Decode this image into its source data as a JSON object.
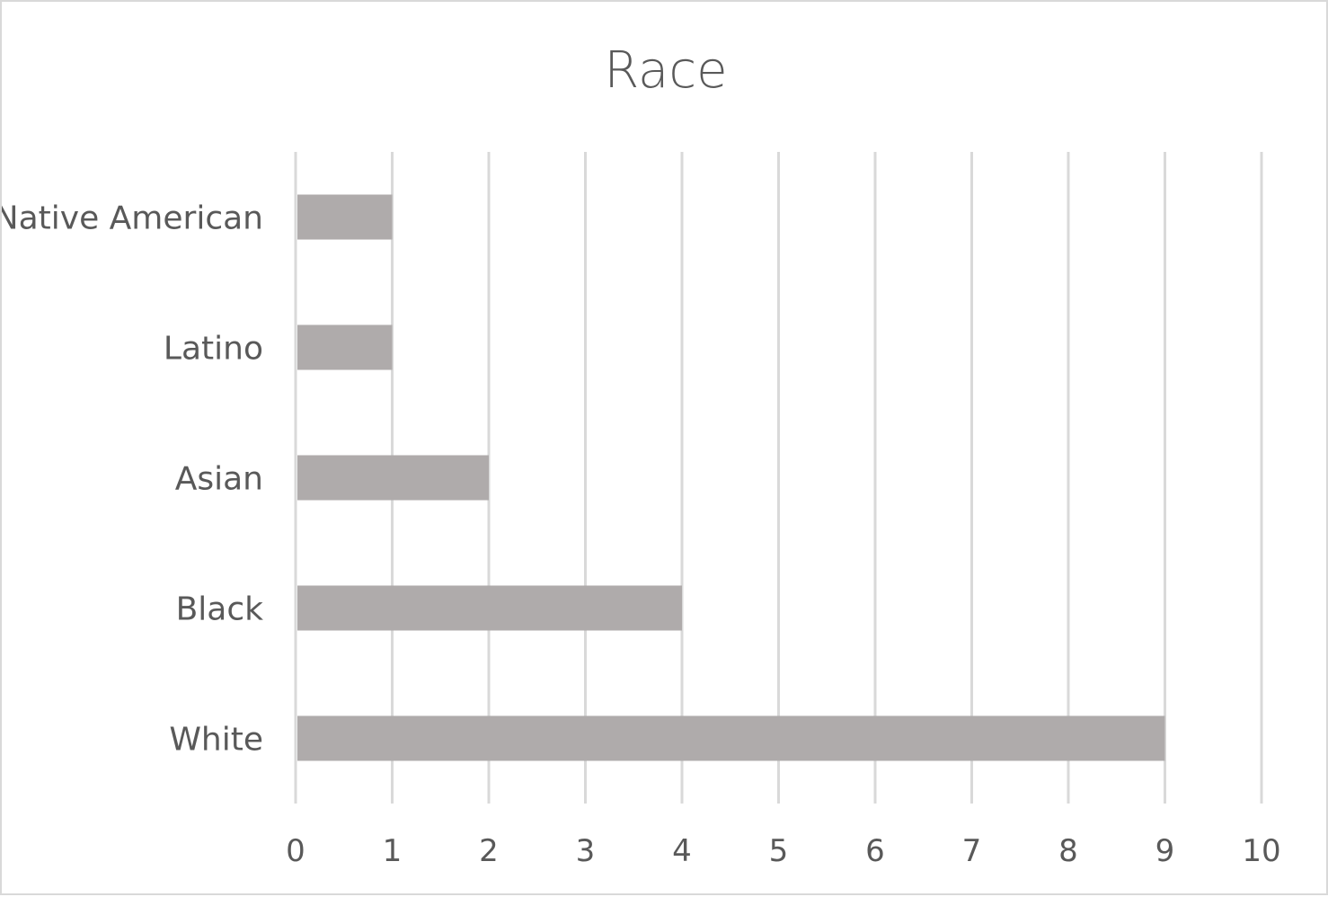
{
  "chart_data": {
    "type": "bar",
    "orientation": "horizontal",
    "title": "Race",
    "categories": [
      "Native American",
      "Latino",
      "Asian",
      "Black",
      "White"
    ],
    "values": [
      1,
      1,
      2,
      4,
      9
    ],
    "xlabel": "",
    "ylabel": "",
    "xlim": [
      0,
      10
    ],
    "ticks": [
      0,
      1,
      2,
      3,
      4,
      5,
      6,
      7,
      8,
      9,
      10
    ],
    "grid": true,
    "legend": "none",
    "bar_color": "#afabab",
    "grid_color": "#d9d9d9",
    "text_color": "#595959"
  }
}
